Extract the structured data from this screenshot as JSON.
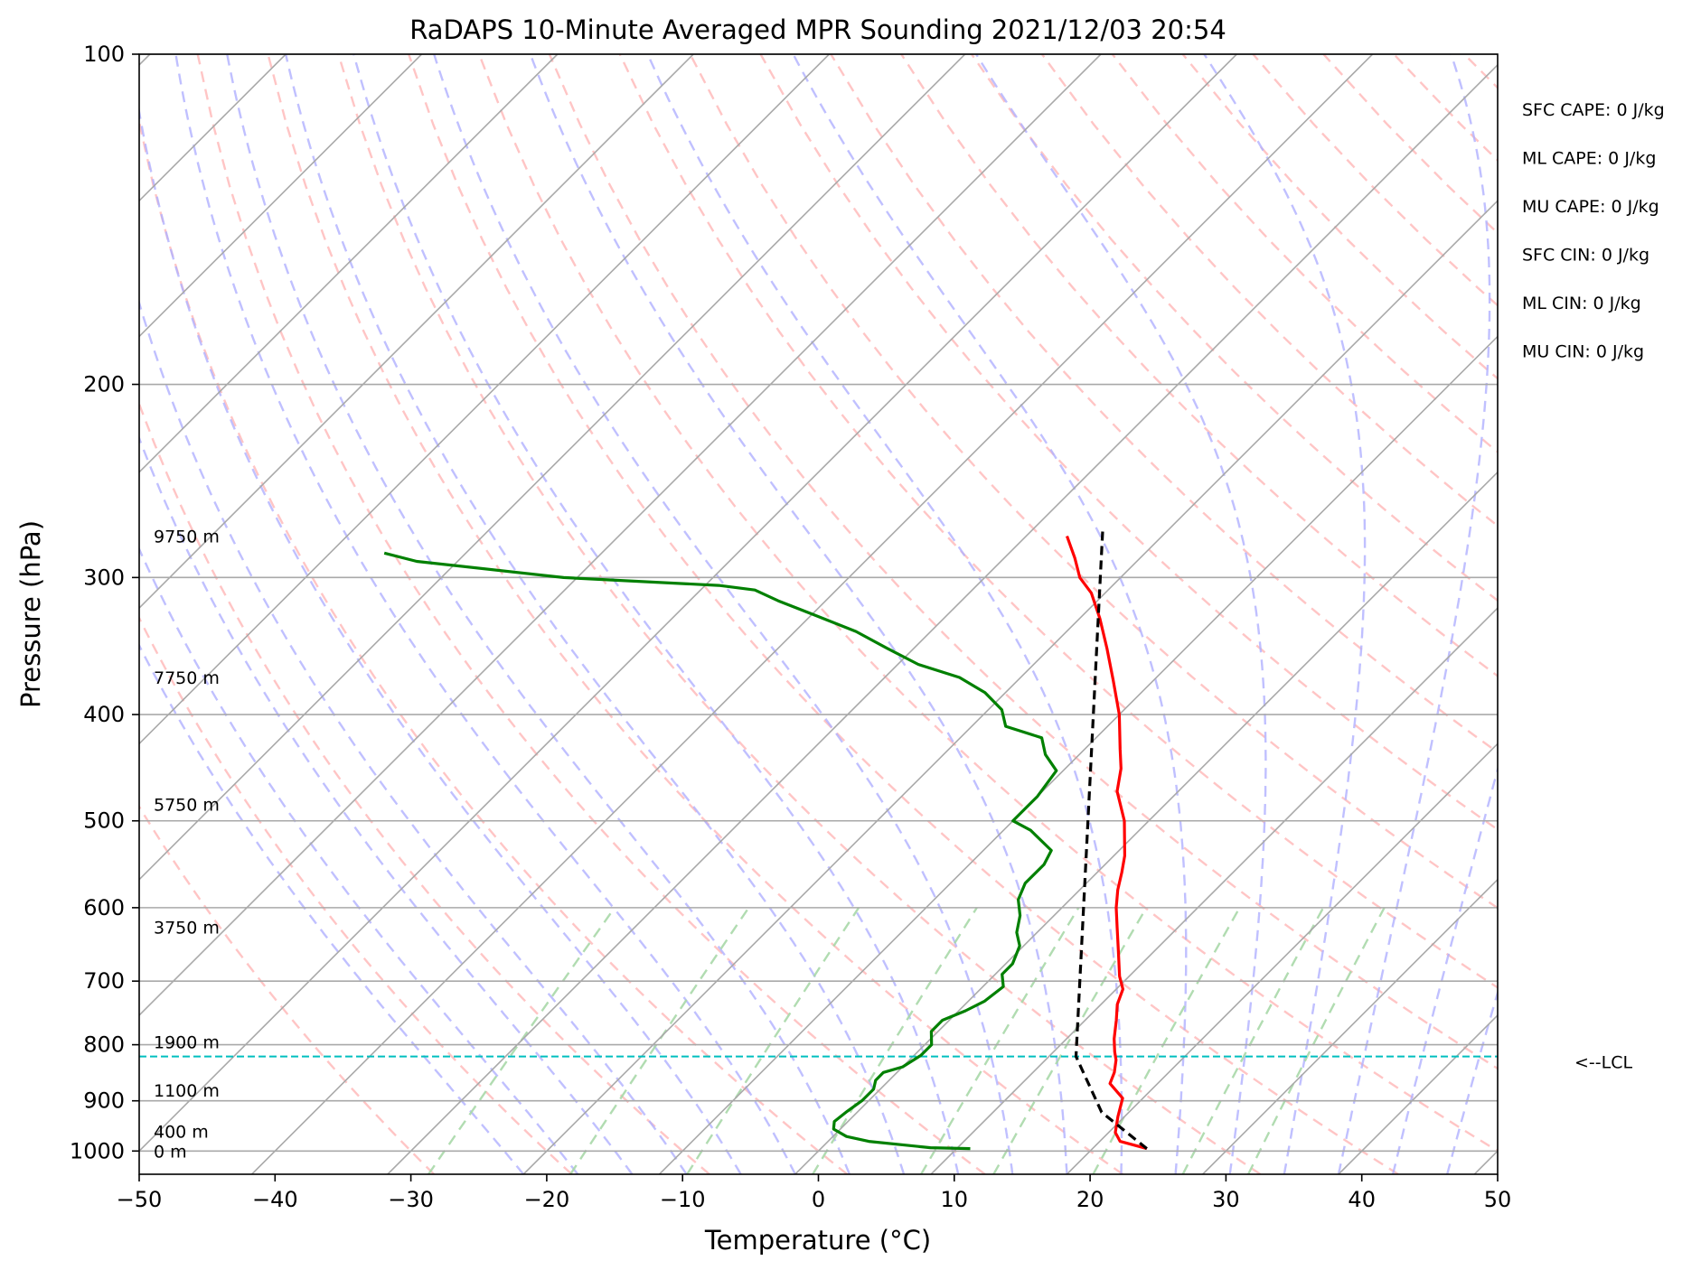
{
  "chart_data": {
    "type": "skew-t",
    "title": "RaDAPS 10-Minute Averaged MPR Sounding 2021/12/03 20:54",
    "xlabel": "Temperature (°C)",
    "ylabel": "Pressure (hPa)",
    "xlim": [
      -50,
      50
    ],
    "ylim": [
      1050,
      100
    ],
    "y_scale": "log",
    "x_ticks": [
      -50,
      -40,
      -30,
      -20,
      -10,
      0,
      10,
      20,
      30,
      40,
      50
    ],
    "x_tick_labels": [
      "−50",
      "−40",
      "−30",
      "−20",
      "−10",
      "0",
      "10",
      "20",
      "30",
      "40",
      "50"
    ],
    "y_ticks": [
      100,
      200,
      300,
      400,
      500,
      600,
      700,
      800,
      900,
      1000
    ],
    "y_tick_labels": [
      "100",
      "200",
      "300",
      "400",
      "500",
      "600",
      "700",
      "800",
      "900",
      "1000"
    ],
    "grid": true,
    "series": [
      {
        "color": "#ff0000",
        "points": [
          [
            24,
            995
          ],
          [
            21.5,
            980
          ],
          [
            20.5,
            962
          ],
          [
            19.5,
            930
          ],
          [
            18.5,
            895
          ],
          [
            16.5,
            868
          ],
          [
            16,
            848
          ],
          [
            15.2,
            826
          ],
          [
            14.5,
            812
          ],
          [
            13.5,
            790
          ],
          [
            12.3,
            760
          ],
          [
            11.2,
            735
          ],
          [
            10.5,
            712
          ],
          [
            9.3,
            693
          ],
          [
            7.4,
            658
          ],
          [
            5.5,
            625
          ],
          [
            4,
            600
          ],
          [
            2.8,
            578
          ],
          [
            1.8,
            557
          ],
          [
            0.8,
            538
          ],
          [
            -1.8,
            500
          ],
          [
            -4.5,
            470
          ],
          [
            -5.9,
            448
          ],
          [
            -7.4,
            430
          ],
          [
            -10,
            400
          ],
          [
            -13,
            372
          ],
          [
            -15.8,
            348
          ],
          [
            -18.5,
            327
          ],
          [
            -21,
            310
          ],
          [
            -23,
            300
          ],
          [
            -24.8,
            288
          ],
          [
            -27,
            275
          ]
        ]
      },
      {
        "color": "#008000",
        "points": [
          [
            11,
            995
          ],
          [
            8,
            993
          ],
          [
            3,
            980
          ],
          [
            1,
            970
          ],
          [
            -0.5,
            955
          ],
          [
            -1,
            940
          ],
          [
            -0.8,
            920
          ],
          [
            -0.5,
            900
          ],
          [
            -0.5,
            878
          ],
          [
            -1,
            862
          ],
          [
            -1,
            848
          ],
          [
            0,
            838
          ],
          [
            0.5,
            818
          ],
          [
            0.5,
            800
          ],
          [
            -0.5,
            778
          ],
          [
            -0.5,
            760
          ],
          [
            0.5,
            745
          ],
          [
            1.2,
            730
          ],
          [
            1.5,
            708
          ],
          [
            0.5,
            690
          ],
          [
            0.5,
            675
          ],
          [
            -0.3,
            650
          ],
          [
            -1.5,
            632
          ],
          [
            -2.5,
            610
          ],
          [
            -3.8,
            590
          ],
          [
            -4.5,
            570
          ],
          [
            -4.5,
            548
          ],
          [
            -5,
            532
          ],
          [
            -8,
            510
          ],
          [
            -10,
            500
          ],
          [
            -10,
            475
          ],
          [
            -10.5,
            450
          ],
          [
            -12.5,
            435
          ],
          [
            -14,
            420
          ],
          [
            -17.5,
            410
          ],
          [
            -19,
            396
          ],
          [
            -21.5,
            382
          ],
          [
            -24.5,
            370
          ],
          [
            -28.5,
            360
          ],
          [
            -32,
            348
          ],
          [
            -35.5,
            336
          ],
          [
            -40,
            324
          ],
          [
            -43.5,
            315
          ],
          [
            -46,
            308
          ],
          [
            -49,
            305
          ],
          [
            -61,
            300
          ],
          [
            -73,
            290
          ],
          [
            -76,
            285
          ]
        ]
      },
      {
        "color": "#000000",
        "dashed": true,
        "points": [
          [
            24,
            995
          ],
          [
            18,
            922
          ],
          [
            12,
            820
          ],
          [
            -25,
            270
          ]
        ]
      }
    ],
    "lcl": {
      "pressure": 820,
      "color": "#00bfbf",
      "label": "<--LCL"
    },
    "height_labels": [
      {
        "text": "9750 m",
        "pressure": 275
      },
      {
        "text": "7750 m",
        "pressure": 370
      },
      {
        "text": "5750 m",
        "pressure": 483
      },
      {
        "text": "3750 m",
        "pressure": 625
      },
      {
        "text": "1900 m",
        "pressure": 795
      },
      {
        "text": "1100 m",
        "pressure": 880
      },
      {
        "text": "400 m",
        "pressure": 960
      },
      {
        "text": "0 m",
        "pressure": 1000
      }
    ],
    "indices": [
      "SFC CAPE: 0 J/kg",
      "ML CAPE: 0 J/kg",
      "MU CAPE: 0 J/kg",
      "SFC CIN: 0 J/kg",
      "ML CIN: 0 J/kg",
      "MU CIN: 0 J/kg"
    ],
    "background_lines": {
      "isotherm_color": "#a9a9a9",
      "dry_adiabat_color": "#ffb6b6",
      "moist_adiabat_color": "#b0b0ff",
      "mixing_ratio_color": "#a8d8a8"
    }
  }
}
